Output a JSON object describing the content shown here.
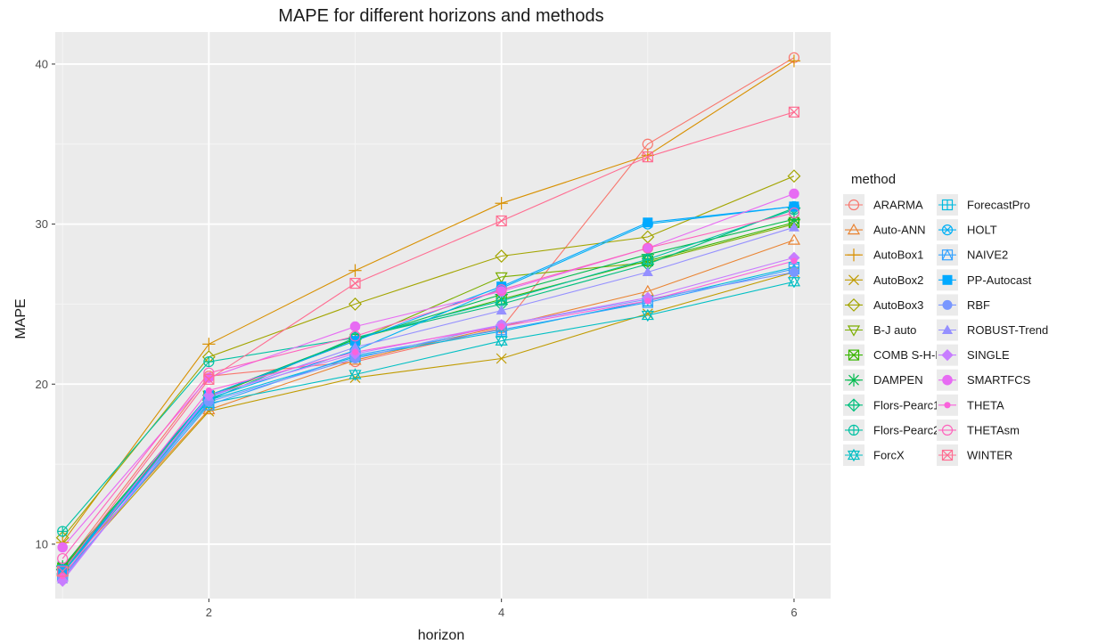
{
  "chart_data": {
    "type": "line",
    "title": "MAPE for different horizons and methods",
    "xlabel": "horizon",
    "ylabel": "MAPE",
    "x": [
      1,
      2,
      3,
      4,
      5,
      6
    ],
    "xlim": [
      0.95,
      6.25
    ],
    "ylim": [
      6.6,
      42
    ],
    "xticks": [
      2,
      4,
      6
    ],
    "yticks": [
      10,
      20,
      30,
      40
    ],
    "grid": true,
    "legend_title": "method",
    "legend_position": "right",
    "series": [
      {
        "name": "ARARMA",
        "color": "#F8766D",
        "shape": "circle-open",
        "values": [
          8.5,
          20.5,
          21.4,
          23.5,
          35.0,
          40.4
        ]
      },
      {
        "name": "Auto-ANN",
        "color": "#EA8331",
        "shape": "triangle-open",
        "values": [
          8.3,
          18.4,
          21.5,
          23.6,
          25.8,
          29.0
        ]
      },
      {
        "name": "AutoBox1",
        "color": "#D89000",
        "shape": "plus",
        "values": [
          10.1,
          22.5,
          27.1,
          31.3,
          34.3,
          40.2
        ]
      },
      {
        "name": "AutoBox2",
        "color": "#C09B00",
        "shape": "cross",
        "values": [
          8.1,
          18.3,
          20.4,
          21.6,
          24.4,
          27.0
        ]
      },
      {
        "name": "AutoBox3",
        "color": "#A3A500",
        "shape": "diamond-open",
        "values": [
          10.4,
          21.7,
          25.0,
          28.0,
          29.2,
          33.0
        ]
      },
      {
        "name": "B-J auto",
        "color": "#7CAE00",
        "shape": "triangle-down-open",
        "values": [
          8.2,
          19.3,
          22.7,
          26.7,
          27.6,
          30.0
        ]
      },
      {
        "name": "COMB S-H-D",
        "color": "#39B600",
        "shape": "square-cross",
        "values": [
          8.5,
          19.2,
          22.8,
          25.3,
          27.7,
          30.1
        ]
      },
      {
        "name": "DAMPEN",
        "color": "#00BB4E",
        "shape": "asterisk",
        "values": [
          8.6,
          19.3,
          22.8,
          25.6,
          28.1,
          30.3
        ]
      },
      {
        "name": "Flors-Pearc1",
        "color": "#00BF7D",
        "shape": "diamond-plus",
        "values": [
          8.4,
          19.0,
          22.9,
          25.0,
          27.5,
          31.0
        ]
      },
      {
        "name": "Flors-Pearc2",
        "color": "#00C1A3",
        "shape": "circle-plus",
        "values": [
          10.8,
          21.4,
          22.9,
          25.2,
          27.8,
          30.9
        ]
      },
      {
        "name": "ForcX",
        "color": "#00BFC4",
        "shape": "star-triangles",
        "values": [
          8.4,
          18.8,
          20.6,
          22.7,
          24.3,
          26.4
        ]
      },
      {
        "name": "ForecastPro",
        "color": "#00BAE0",
        "shape": "square-plus",
        "values": [
          8.2,
          19.0,
          21.7,
          23.3,
          25.2,
          27.3
        ]
      },
      {
        "name": "HOLT",
        "color": "#00B0F6",
        "shape": "circle-cross",
        "values": [
          8.3,
          19.1,
          22.1,
          26.0,
          30.0,
          31.1
        ]
      },
      {
        "name": "NAIVE2",
        "color": "#35A2FF",
        "shape": "square-triangle",
        "values": [
          8.0,
          18.7,
          21.8,
          23.4,
          25.1,
          27.2
        ]
      },
      {
        "name": "PP-Autocast",
        "color": "#00A9FF",
        "shape": "square-filled",
        "values": [
          8.4,
          19.3,
          22.7,
          26.1,
          30.1,
          31.1
        ]
      },
      {
        "name": "RBF",
        "color": "#7997FF",
        "shape": "circle-filled",
        "values": [
          7.9,
          18.9,
          21.6,
          23.7,
          25.3,
          27.0
        ]
      },
      {
        "name": "ROBUST-Trend",
        "color": "#9590FF",
        "shape": "triangle-filled",
        "values": [
          7.8,
          19.2,
          22.3,
          24.6,
          27.0,
          29.8
        ]
      },
      {
        "name": "SINGLE",
        "color": "#C77CFF",
        "shape": "diamond-filled",
        "values": [
          7.7,
          19.3,
          21.9,
          23.7,
          25.4,
          27.9
        ]
      },
      {
        "name": "SMARTFCS",
        "color": "#E76BF3",
        "shape": "circle-big",
        "values": [
          9.8,
          20.4,
          23.6,
          25.8,
          28.5,
          31.9
        ]
      },
      {
        "name": "THETA",
        "color": "#FA62DB",
        "shape": "circle-small",
        "values": [
          8.0,
          19.6,
          22.0,
          23.6,
          25.2,
          27.7
        ]
      },
      {
        "name": "THETAsm",
        "color": "#FF62BC",
        "shape": "circle-open",
        "values": [
          9.1,
          20.7,
          23.0,
          25.9,
          28.5,
          30.7
        ]
      },
      {
        "name": "WINTER",
        "color": "#FF6C91",
        "shape": "square-cross",
        "values": [
          8.3,
          20.3,
          26.3,
          30.2,
          34.2,
          37.0
        ]
      }
    ]
  }
}
